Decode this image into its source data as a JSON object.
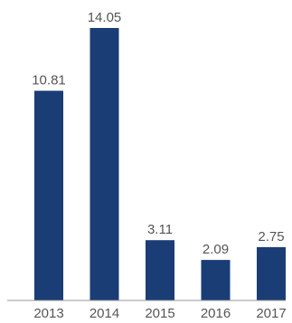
{
  "chart_data": {
    "type": "bar",
    "title": "",
    "xlabel": "",
    "ylabel": "",
    "categories": [
      "2013",
      "2014",
      "2015",
      "2016",
      "2017"
    ],
    "values": [
      10.81,
      14.05,
      3.11,
      2.09,
      2.75
    ],
    "value_labels": [
      "10.81",
      "14.05",
      "3.11",
      "2.09",
      "2.75"
    ],
    "ylim": [
      0,
      14.05
    ],
    "grid": false,
    "legend": "none",
    "colors": {
      "bar": "#1a3d75",
      "baseline": "#999999",
      "label_text": "#555555"
    }
  }
}
